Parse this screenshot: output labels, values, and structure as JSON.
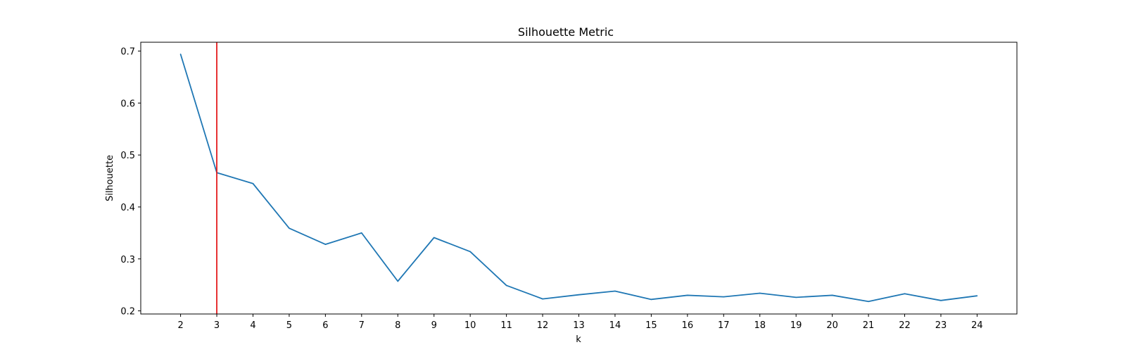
{
  "chart_data": {
    "type": "line",
    "title": "Silhouette Metric",
    "xlabel": "k",
    "ylabel": "Silhouette",
    "x": [
      2,
      3,
      4,
      5,
      6,
      7,
      8,
      9,
      10,
      11,
      12,
      13,
      14,
      15,
      16,
      17,
      18,
      19,
      20,
      21,
      22,
      23,
      24
    ],
    "series": [
      {
        "values": [
          0.694,
          0.466,
          0.445,
          0.359,
          0.328,
          0.35,
          0.257,
          0.341,
          0.314,
          0.249,
          0.223,
          0.231,
          0.238,
          0.222,
          0.23,
          0.227,
          0.234,
          0.226,
          0.23,
          0.218,
          0.233,
          0.22,
          0.229
        ],
        "color": "#1f77b4"
      }
    ],
    "vline": {
      "x": 3,
      "color": "#e41a1c"
    },
    "xlim": [
      0.9,
      25.1
    ],
    "ylim": [
      0.194,
      0.717
    ],
    "yticks": [
      0.2,
      0.3,
      0.4,
      0.5,
      0.6,
      0.7
    ],
    "ytick_labels": [
      "0.2",
      "0.3",
      "0.4",
      "0.5",
      "0.6",
      "0.7"
    ],
    "xticks": [
      2,
      3,
      4,
      5,
      6,
      7,
      8,
      9,
      10,
      11,
      12,
      13,
      14,
      15,
      16,
      17,
      18,
      19,
      20,
      21,
      22,
      23,
      24
    ],
    "grid": false,
    "legend": "none"
  }
}
